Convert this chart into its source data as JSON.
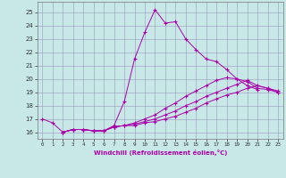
{
  "xlabel": "Windchill (Refroidissement éolien,°C)",
  "background_color": "#c8e8e8",
  "line_color": "#aa00aa",
  "grid_color": "#9999bb",
  "xlim": [
    -0.5,
    23.5
  ],
  "ylim": [
    15.5,
    25.8
  ],
  "xticks": [
    0,
    1,
    2,
    3,
    4,
    5,
    6,
    7,
    8,
    9,
    10,
    11,
    12,
    13,
    14,
    15,
    16,
    17,
    18,
    19,
    20,
    21,
    22,
    23
  ],
  "yticks": [
    16,
    17,
    18,
    19,
    20,
    21,
    22,
    23,
    24,
    25
  ],
  "lines": [
    {
      "x": [
        0,
        1,
        2,
        3,
        4,
        5,
        6,
        7,
        8,
        9,
        10,
        11,
        12,
        13,
        14,
        15,
        16,
        17,
        18,
        19,
        20,
        21
      ],
      "y": [
        17.0,
        16.7,
        16.0,
        16.2,
        16.2,
        16.1,
        16.1,
        16.5,
        18.3,
        21.5,
        23.5,
        25.2,
        24.2,
        24.3,
        23.0,
        22.2,
        21.5,
        21.3,
        20.7,
        20.0,
        19.5,
        19.2
      ]
    },
    {
      "x": [
        2,
        3,
        4,
        5,
        6,
        7,
        8,
        9,
        10,
        11,
        12,
        13,
        14,
        15,
        16,
        17,
        18,
        19,
        20,
        21,
        22,
        23
      ],
      "y": [
        16.0,
        16.2,
        16.2,
        16.1,
        16.1,
        16.4,
        16.5,
        16.5,
        16.7,
        16.8,
        17.0,
        17.2,
        17.5,
        17.8,
        18.2,
        18.5,
        18.8,
        19.0,
        19.3,
        19.5,
        19.3,
        19.0
      ]
    },
    {
      "x": [
        2,
        3,
        4,
        5,
        6,
        7,
        8,
        9,
        10,
        11,
        12,
        13,
        14,
        15,
        16,
        17,
        18,
        19,
        20,
        21,
        22,
        23
      ],
      "y": [
        16.0,
        16.2,
        16.2,
        16.1,
        16.1,
        16.4,
        16.5,
        16.6,
        16.8,
        17.0,
        17.3,
        17.6,
        18.0,
        18.3,
        18.7,
        19.0,
        19.3,
        19.6,
        19.9,
        19.5,
        19.3,
        19.1
      ]
    },
    {
      "x": [
        2,
        3,
        4,
        5,
        6,
        7,
        8,
        9,
        10,
        11,
        12,
        13,
        14,
        15,
        16,
        17,
        18,
        19,
        20,
        21,
        22,
        23
      ],
      "y": [
        16.0,
        16.2,
        16.2,
        16.1,
        16.1,
        16.4,
        16.5,
        16.7,
        17.0,
        17.3,
        17.8,
        18.2,
        18.7,
        19.1,
        19.5,
        19.9,
        20.1,
        20.0,
        19.8,
        19.3,
        19.2,
        19.0
      ]
    }
  ]
}
